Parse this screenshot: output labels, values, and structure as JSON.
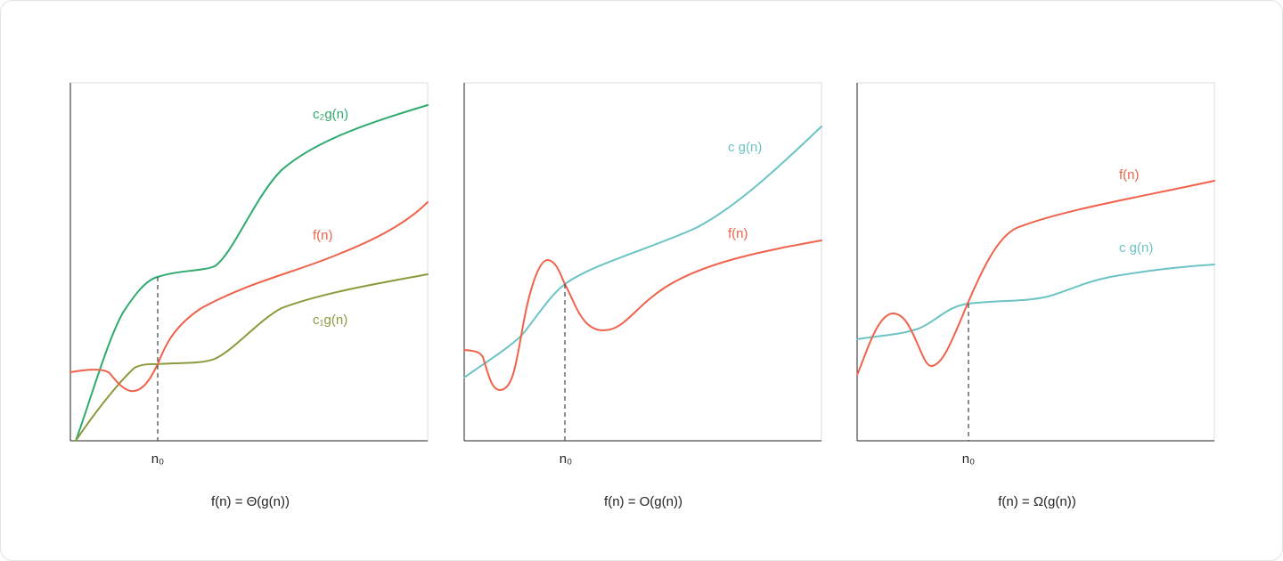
{
  "colors": {
    "upper_green": "#2eaa6e",
    "lower_olive": "#8b9a3c",
    "f_red": "#f0624a",
    "cg_teal": "#6cc3c4",
    "axis": "#222222"
  },
  "panels": [
    {
      "caption": "f(n) = Θ(g(n))",
      "n0_label": "n₀",
      "labels": {
        "c2g": "c₂g(n)",
        "f": "f(n)",
        "c1g": "c₁g(n)"
      }
    },
    {
      "caption": "f(n) = O(g(n))",
      "n0_label": "n₀",
      "labels": {
        "cg": "c g(n)",
        "f": "f(n)"
      }
    },
    {
      "caption": "f(n) = Ω(g(n))",
      "n0_label": "n₀",
      "labels": {
        "f": "f(n)",
        "cg": "c g(n)"
      }
    }
  ]
}
